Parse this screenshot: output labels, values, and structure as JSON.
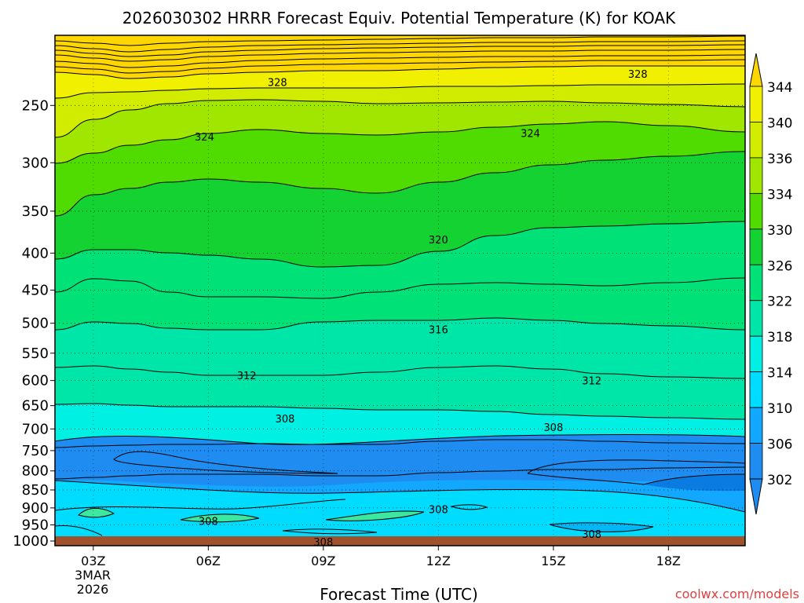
{
  "chart_data": {
    "type": "contour",
    "title": "2026030302 HRRR Forecast Equiv. Potential Temperature (K) for KOAK",
    "xlabel": "Forecast Time (UTC)",
    "ylabel": "",
    "x_ticks": [
      "03Z",
      "06Z",
      "09Z",
      "12Z",
      "15Z",
      "18Z"
    ],
    "x_date_lines": [
      "3MAR",
      "2026"
    ],
    "x_range_hours": [
      2,
      20
    ],
    "y_ticks": [
      250,
      300,
      350,
      400,
      450,
      500,
      550,
      600,
      650,
      700,
      750,
      800,
      850,
      900,
      950,
      1000
    ],
    "y_range_hpa": [
      200,
      1015
    ],
    "colorbar": {
      "levels": [
        302,
        306,
        310,
        314,
        318,
        322,
        326,
        330,
        334,
        336,
        340,
        344
      ],
      "colors": [
        "#1e8cf0",
        "#12a8ff",
        "#00dcff",
        "#00f0e4",
        "#00e6a8",
        "#00e178",
        "#14d232",
        "#50dc00",
        "#a0e600",
        "#d2ec00",
        "#f0f000",
        "#ffd700"
      ]
    },
    "contour_labels": [
      {
        "text": "328",
        "hour": 7.8,
        "hpa": 232
      },
      {
        "text": "328",
        "hour": 17.2,
        "hpa": 226
      },
      {
        "text": "324",
        "hour": 5.9,
        "hpa": 276
      },
      {
        "text": "324",
        "hour": 14.4,
        "hpa": 273
      },
      {
        "text": "320",
        "hour": 12.0,
        "hpa": 383
      },
      {
        "text": "316",
        "hour": 12.0,
        "hpa": 510
      },
      {
        "text": "312",
        "hour": 7.0,
        "hpa": 590
      },
      {
        "text": "312",
        "hour": 16.0,
        "hpa": 600
      },
      {
        "text": "308",
        "hour": 8.0,
        "hpa": 677
      },
      {
        "text": "308",
        "hour": 15.0,
        "hpa": 696
      },
      {
        "text": "308",
        "hour": 12.0,
        "hpa": 904
      },
      {
        "text": "308",
        "hour": 6.0,
        "hpa": 938
      },
      {
        "text": "308",
        "hour": 16.0,
        "hpa": 978
      },
      {
        "text": "308",
        "hour": 9.0,
        "hpa": 1002
      }
    ],
    "surface_band_color": "#a0522d"
  },
  "watermark": "coolwx.com/models"
}
